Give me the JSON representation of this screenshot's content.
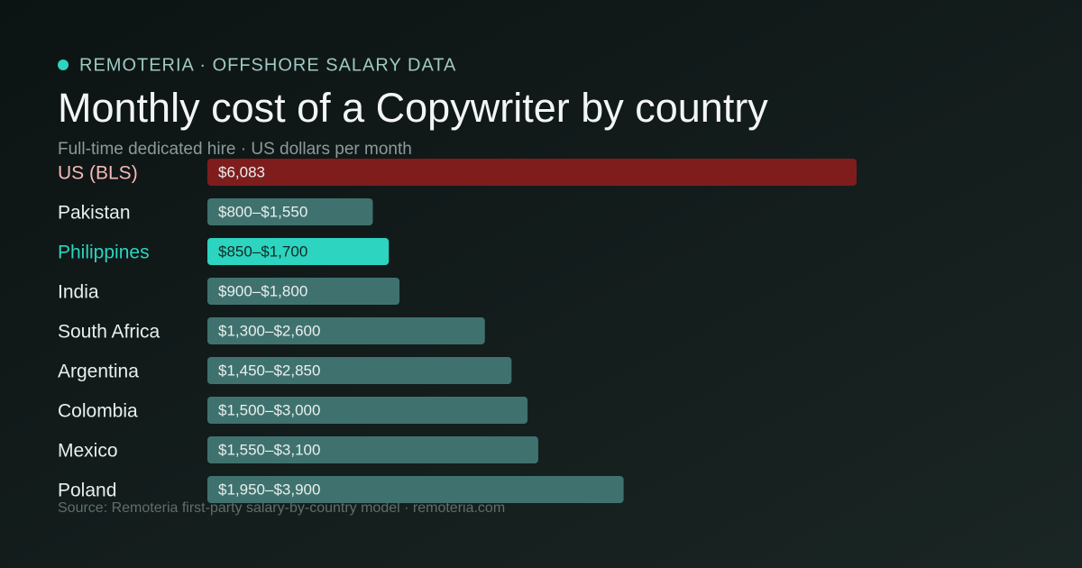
{
  "chart_data": {
    "type": "bar",
    "kicker": "REMOTERIA · OFFSHORE SALARY DATA",
    "title": "Monthly cost of a Copywriter by country",
    "subtitle": "Full-time dedicated hire · US dollars per month",
    "source": "Source: Remoteria first-party salary-by-country model · remoteria.com",
    "categories": [
      "US (BLS)",
      "Pakistan",
      "Philippines",
      "India",
      "South Africa",
      "Argentina",
      "Colombia",
      "Mexico",
      "Poland"
    ],
    "low": [
      6083,
      800,
      850,
      900,
      1300,
      1450,
      1500,
      1550,
      1950
    ],
    "high": [
      6083,
      1550,
      1700,
      1800,
      2600,
      2850,
      3000,
      3100,
      3900
    ],
    "value_labels": [
      "$6,083",
      "$800–$1,550",
      "$850–$1,700",
      "$900–$1,800",
      "$1,300–$2,600",
      "$1,450–$2,850",
      "$1,500–$3,000",
      "$1,550–$3,100",
      "$1,950–$3,900"
    ],
    "colors": [
      "#7f1d1d",
      "#3f726e",
      "#2dd4bf",
      "#3f726e",
      "#3f726e",
      "#3f726e",
      "#3f726e",
      "#3f726e",
      "#3f726e"
    ],
    "label_colors": [
      "#f6b8b8",
      "#e8eeec",
      "#2dd4bf",
      "#e8eeec",
      "#e8eeec",
      "#e8eeec",
      "#e8eeec",
      "#e8eeec",
      "#e8eeec"
    ],
    "xlim": [
      0,
      6083
    ]
  }
}
